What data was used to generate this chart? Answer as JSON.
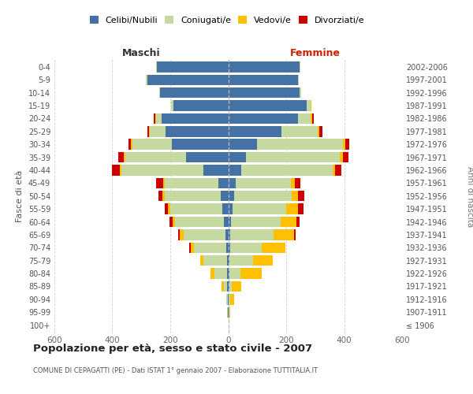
{
  "age_groups": [
    "100+",
    "95-99",
    "90-94",
    "85-89",
    "80-84",
    "75-79",
    "70-74",
    "65-69",
    "60-64",
    "55-59",
    "50-54",
    "45-49",
    "40-44",
    "35-39",
    "30-34",
    "25-29",
    "20-24",
    "15-19",
    "10-14",
    "5-9",
    "0-4"
  ],
  "birth_years": [
    "≤ 1906",
    "1907-1911",
    "1912-1916",
    "1917-1921",
    "1922-1926",
    "1927-1931",
    "1932-1936",
    "1937-1941",
    "1942-1946",
    "1947-1951",
    "1952-1956",
    "1957-1961",
    "1962-1966",
    "1967-1971",
    "1972-1976",
    "1977-1981",
    "1982-1986",
    "1987-1991",
    "1992-1996",
    "1997-2001",
    "2002-2006"
  ],
  "maschi": {
    "celibi": [
      0,
      1,
      2,
      3,
      3,
      5,
      8,
      10,
      15,
      20,
      25,
      35,
      85,
      145,
      195,
      215,
      230,
      190,
      235,
      280,
      245
    ],
    "coniugati": [
      0,
      2,
      4,
      12,
      45,
      80,
      110,
      145,
      170,
      180,
      195,
      185,
      285,
      210,
      135,
      55,
      20,
      8,
      3,
      3,
      3
    ],
    "vedovi": [
      0,
      0,
      2,
      8,
      12,
      12,
      12,
      12,
      8,
      7,
      6,
      5,
      5,
      5,
      5,
      3,
      3,
      0,
      0,
      0,
      0
    ],
    "divorziati": [
      0,
      0,
      0,
      0,
      0,
      0,
      5,
      5,
      10,
      12,
      15,
      25,
      25,
      20,
      10,
      5,
      5,
      0,
      0,
      0,
      0
    ]
  },
  "femmine": {
    "nubili": [
      0,
      1,
      2,
      3,
      3,
      5,
      6,
      8,
      10,
      15,
      20,
      25,
      45,
      60,
      100,
      185,
      240,
      270,
      245,
      240,
      245
    ],
    "coniugate": [
      0,
      2,
      4,
      8,
      38,
      80,
      110,
      148,
      170,
      185,
      200,
      190,
      315,
      325,
      295,
      125,
      45,
      15,
      8,
      3,
      3
    ],
    "vedove": [
      2,
      5,
      15,
      35,
      75,
      68,
      82,
      72,
      55,
      40,
      22,
      15,
      10,
      10,
      8,
      5,
      5,
      3,
      0,
      0,
      0
    ],
    "divorziate": [
      0,
      0,
      0,
      0,
      0,
      0,
      0,
      5,
      10,
      20,
      20,
      20,
      20,
      20,
      15,
      10,
      5,
      0,
      0,
      0,
      0
    ]
  },
  "colors": {
    "celibi": "#4472a4",
    "coniugati": "#c5d9a0",
    "vedovi": "#ffc000",
    "divorziati": "#cc0000"
  },
  "xlim": 600,
  "title": "Popolazione per età, sesso e stato civile - 2007",
  "subtitle": "COMUNE DI CEPAGATTI (PE) - Dati ISTAT 1° gennaio 2007 - Elaborazione TUTTITALIA.IT",
  "ylabel_left": "Fasce di età",
  "ylabel_right": "Anni di nascita",
  "xlabel_maschi": "Maschi",
  "xlabel_femmine": "Femmine",
  "background_color": "#ffffff",
  "grid_color": "#cccccc"
}
